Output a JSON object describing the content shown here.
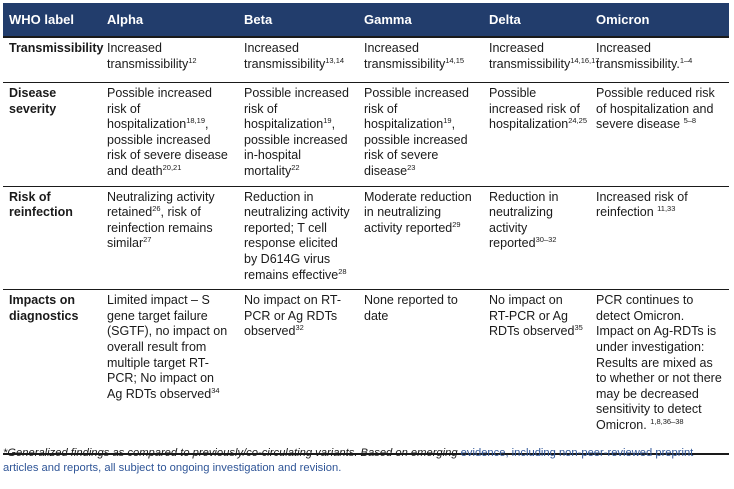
{
  "headers": [
    "WHO label",
    "Alpha",
    "Beta",
    "Gamma",
    "Delta",
    "Omicron"
  ],
  "rows": [
    {
      "label": "Transmissibility",
      "cells": [
        {
          "text": "Increased transmissibility",
          "sup": "12"
        },
        {
          "text": "Increased transmissibility",
          "sup": "13,14"
        },
        {
          "text": "Increased transmissibility",
          "sup": "14,15"
        },
        {
          "text": "Increased transmissibility",
          "sup": "14,16,17"
        },
        {
          "text": "Increased transmissibility.",
          "sup": "1–4"
        }
      ]
    },
    {
      "label": "Disease severity",
      "cells": [
        {
          "parts": [
            {
              "t": "Possible increased risk of hospitalization"
            },
            {
              "s": "18,19"
            },
            {
              "t": ", possible increased risk of severe disease and death"
            },
            {
              "s": "20,21"
            }
          ]
        },
        {
          "parts": [
            {
              "t": "Possible increased risk of hospitalization"
            },
            {
              "s": "19"
            },
            {
              "t": ", possible increased in-hospital mortality"
            },
            {
              "s": "22"
            }
          ]
        },
        {
          "parts": [
            {
              "t": "Possible increased risk of hospitalization"
            },
            {
              "s": "19"
            },
            {
              "t": ", possible increased risk of severe disease"
            },
            {
              "s": "23"
            }
          ]
        },
        {
          "parts": [
            {
              "t": "Possible increased risk of hospitalization"
            },
            {
              "s": "24,25"
            }
          ]
        },
        {
          "parts": [
            {
              "t": "Possible reduced risk of hospitalization and severe disease "
            },
            {
              "s": "5–8"
            }
          ]
        }
      ]
    },
    {
      "label": "Risk of reinfection",
      "cells": [
        {
          "parts": [
            {
              "t": "Neutralizing activity retained"
            },
            {
              "s": "26"
            },
            {
              "t": ", risk of reinfection remains similar"
            },
            {
              "s": "27"
            }
          ]
        },
        {
          "parts": [
            {
              "t": "Reduction in neutralizing activity reported; T cell response elicited by D614G virus remains effective"
            },
            {
              "s": "28"
            }
          ]
        },
        {
          "parts": [
            {
              "t": "Moderate reduction in neutralizing activity reported"
            },
            {
              "s": "29"
            }
          ]
        },
        {
          "parts": [
            {
              "t": "Reduction in neutralizing activity reported"
            },
            {
              "s": "30–32"
            }
          ]
        },
        {
          "parts": [
            {
              "t": "Increased risk of reinfection "
            },
            {
              "s": "11,33"
            }
          ]
        }
      ]
    },
    {
      "label": "Impacts on diagnostics",
      "cells": [
        {
          "parts": [
            {
              "t": "Limited impact – S gene target failure (SGTF), no impact on overall result from multiple target RT-PCR; No impact on Ag RDTs observed"
            },
            {
              "s": "34"
            }
          ]
        },
        {
          "parts": [
            {
              "t": "No impact on RT-PCR or Ag RDTs observed"
            },
            {
              "s": "32"
            }
          ]
        },
        {
          "parts": [
            {
              "t": "None reported to date"
            }
          ]
        },
        {
          "parts": [
            {
              "t": "No impact on RT-PCR or Ag RDTs observed"
            },
            {
              "s": "35"
            }
          ]
        },
        {
          "parts": [
            {
              "t": "PCR continues to detect Omicron. Impact on Ag-RDTs is under investigation: Results are mixed as to whether or not there may be decreased sensitivity to detect Omicron. "
            },
            {
              "s": "1,8,36–38"
            }
          ]
        }
      ]
    }
  ],
  "footnote": {
    "italic": "*Generalized findings as compared to previously/co-circulating variants. Based on emerging",
    "rest": " evidence, including non-peer-reviewed preprint articles and reports, all subject to ongoing investigation and revision."
  }
}
